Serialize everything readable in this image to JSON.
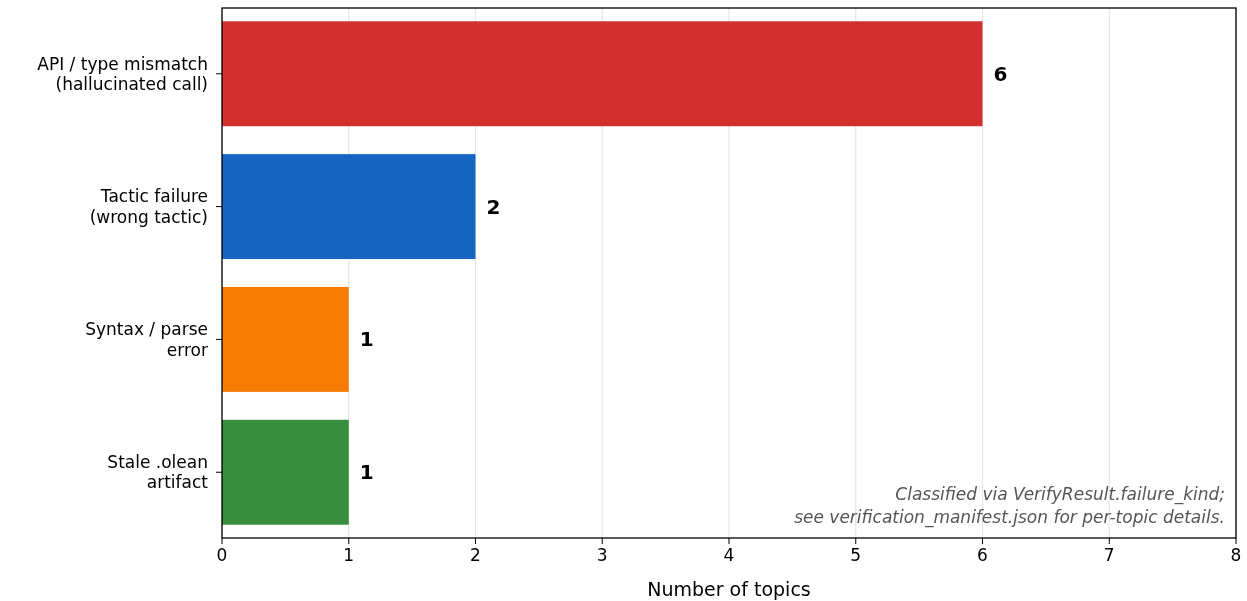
{
  "chart_data": {
    "type": "bar",
    "orientation": "horizontal",
    "categories": [
      "API / type mismatch\n(hallucinated call)",
      "Tactic failure\n(wrong tactic)",
      "Syntax / parse\nerror",
      "Stale .olean\nartifact"
    ],
    "values": [
      6,
      2,
      1,
      1
    ],
    "colors": [
      "#d32f2f",
      "#1565c0",
      "#f57c00",
      "#388e3c"
    ],
    "xlabel": "Number of topics",
    "xlim": [
      0,
      8
    ],
    "xticks": [
      0,
      1,
      2,
      3,
      4,
      5,
      6,
      7,
      8
    ],
    "grid": "x",
    "data_labels": true,
    "annotations": [
      "Classified via VerifyResult.failure_kind;",
      "see verification_manifest.json for per-topic details."
    ]
  }
}
